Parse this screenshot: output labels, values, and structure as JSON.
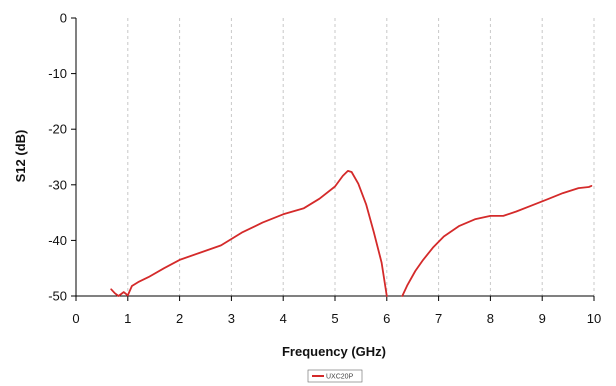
{
  "chart_data": {
    "type": "line",
    "xlabel": "Frequency (GHz)",
    "ylabel": "S12 (dB)",
    "xlim": [
      0,
      10
    ],
    "ylim": [
      -50,
      0
    ],
    "x_ticks": [
      0,
      1,
      2,
      3,
      4,
      5,
      6,
      7,
      8,
      9,
      10
    ],
    "y_ticks": [
      0,
      -10,
      -20,
      -30,
      -40,
      -50
    ],
    "grid": "vertical dashed",
    "legend_position": "bottom-center",
    "series": [
      {
        "name": "UXC20P",
        "color": "#d42a2a",
        "segments": [
          [
            [
              0.68,
              -48.8
            ],
            [
              0.75,
              -49.5
            ],
            [
              0.82,
              -50.0
            ],
            [
              0.92,
              -49.3
            ],
            [
              1.0,
              -49.9
            ],
            [
              1.08,
              -48.2
            ],
            [
              1.2,
              -47.5
            ],
            [
              1.4,
              -46.6
            ],
            [
              1.7,
              -45.0
            ],
            [
              2.0,
              -43.5
            ],
            [
              2.4,
              -42.2
            ],
            [
              2.8,
              -40.9
            ],
            [
              3.2,
              -38.6
            ],
            [
              3.6,
              -36.8
            ],
            [
              4.0,
              -35.3
            ],
            [
              4.4,
              -34.2
            ],
            [
              4.7,
              -32.5
            ],
            [
              5.0,
              -30.3
            ],
            [
              5.15,
              -28.4
            ],
            [
              5.25,
              -27.5
            ],
            [
              5.32,
              -27.7
            ],
            [
              5.45,
              -29.8
            ],
            [
              5.6,
              -33.5
            ],
            [
              5.75,
              -38.5
            ],
            [
              5.9,
              -44.0
            ],
            [
              6.0,
              -50.0
            ]
          ],
          [
            [
              6.3,
              -50.0
            ],
            [
              6.4,
              -48.0
            ],
            [
              6.55,
              -45.5
            ],
            [
              6.7,
              -43.5
            ],
            [
              6.9,
              -41.2
            ],
            [
              7.1,
              -39.3
            ],
            [
              7.4,
              -37.4
            ],
            [
              7.7,
              -36.2
            ],
            [
              8.0,
              -35.6
            ],
            [
              8.25,
              -35.6
            ],
            [
              8.5,
              -34.8
            ],
            [
              8.8,
              -33.7
            ],
            [
              9.1,
              -32.6
            ],
            [
              9.4,
              -31.5
            ],
            [
              9.7,
              -30.6
            ],
            [
              9.9,
              -30.4
            ],
            [
              9.95,
              -30.2
            ]
          ]
        ]
      }
    ]
  }
}
